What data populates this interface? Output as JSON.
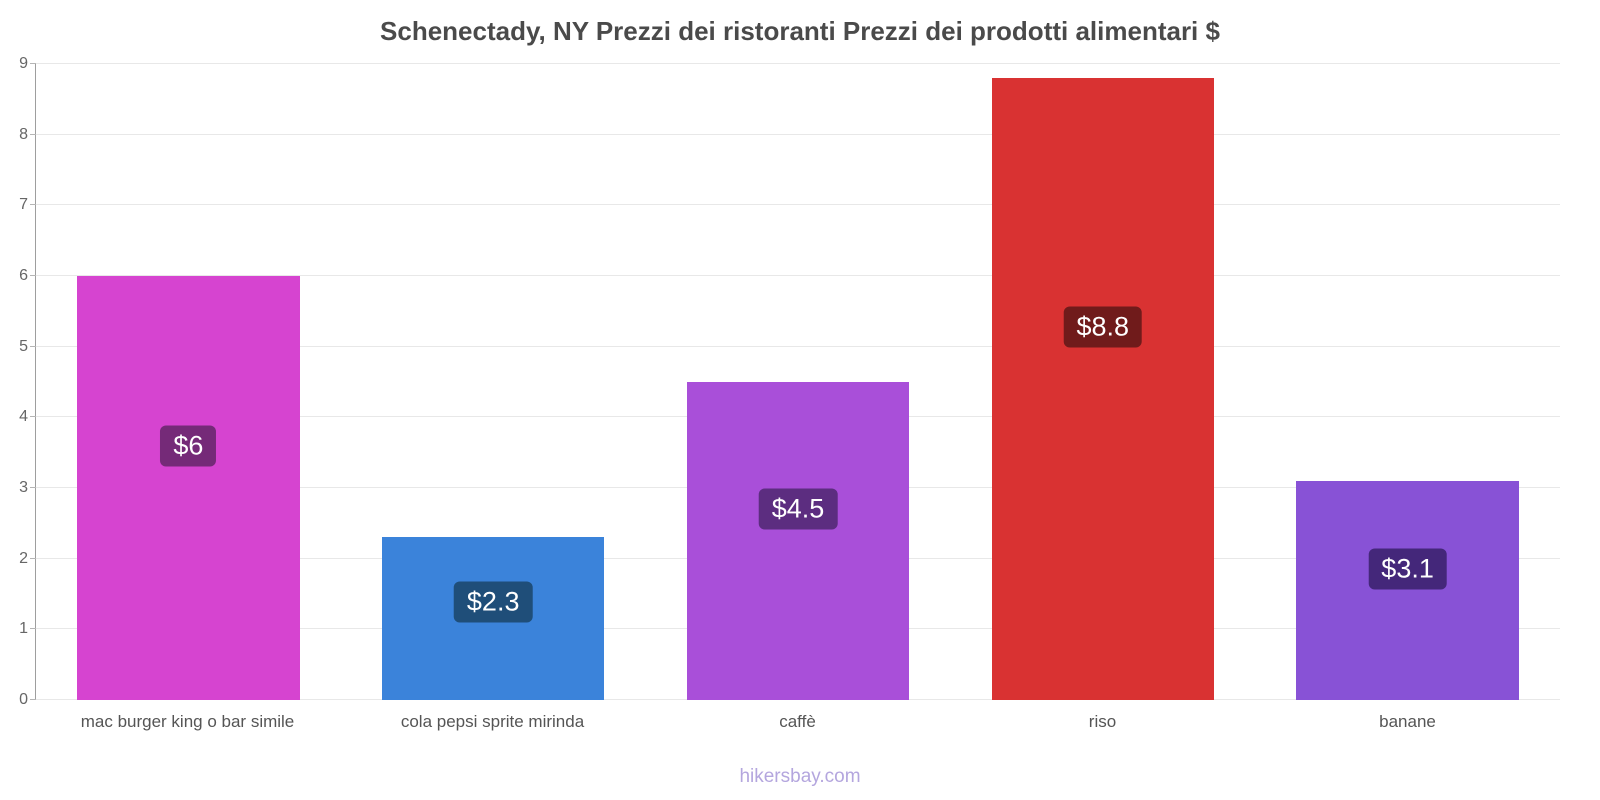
{
  "title": "Schenectady, NY Prezzi dei ristoranti Prezzi dei prodotti alimentari $",
  "footer": "hikersbay.com",
  "chart_data": {
    "type": "bar",
    "title": "Schenectady, NY Prezzi dei ristoranti Prezzi dei prodotti alimentari $",
    "categories": [
      "mac burger king o bar simile",
      "cola pepsi sprite mirinda",
      "caffè",
      "riso",
      "banane"
    ],
    "values": [
      6,
      2.3,
      4.5,
      8.8,
      3.1
    ],
    "value_labels": [
      "$6",
      "$2.3",
      "$4.5",
      "$8.8",
      "$3.1"
    ],
    "bar_colors": [
      "#d644d0",
      "#3b83da",
      "#a94fd9",
      "#d93232",
      "#8852d6"
    ],
    "badge_colors": [
      "#752a78",
      "#1f4e79",
      "#5c2d80",
      "#701b1b",
      "#44277a"
    ],
    "xlabel": "",
    "ylabel": "",
    "ylim": [
      0,
      9
    ],
    "ytick_step": 1,
    "grid": true,
    "legend": false,
    "watermark": "hikersbay.com"
  }
}
